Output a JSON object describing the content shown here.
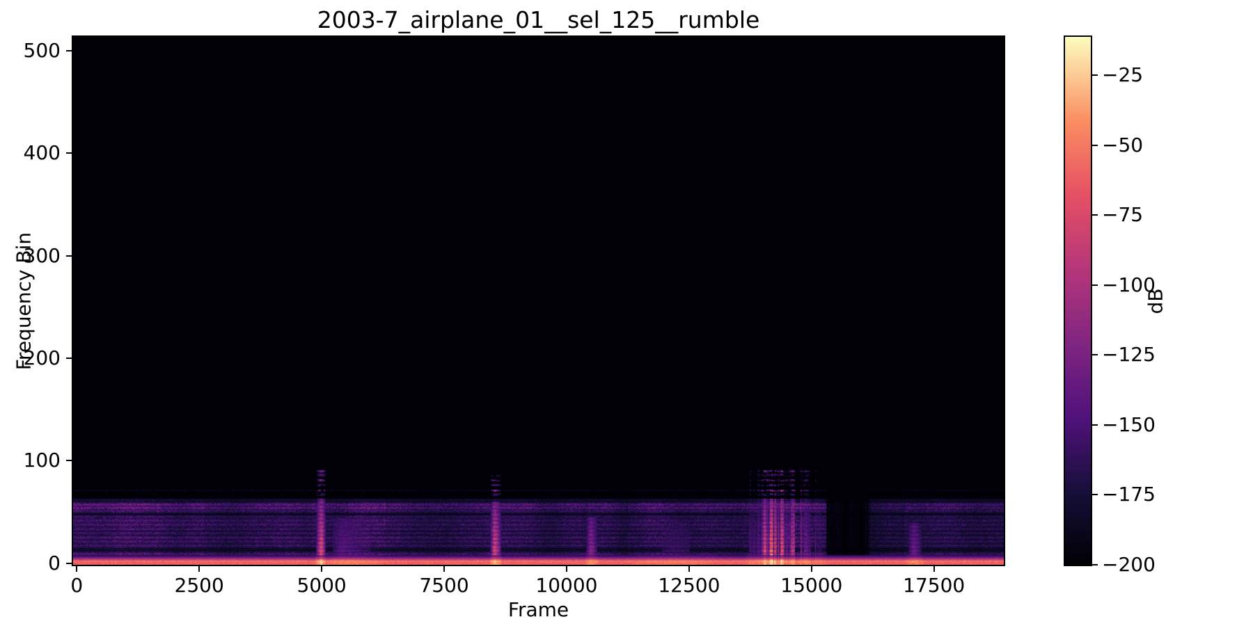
{
  "figure": {
    "background": "#ffffff",
    "text_color": "#000000"
  },
  "chart_data": {
    "type": "heatmap",
    "subtype": "spectrogram",
    "title": "2003-7_airplane_01__sel_125__rumble",
    "xlabel": "Frame",
    "ylabel": "Frequency Bin",
    "colormap": "magma",
    "grid": false,
    "x_axis": {
      "min": -75,
      "max": 18925,
      "ticks": [
        0,
        2500,
        5000,
        7500,
        10000,
        12500,
        15000,
        17500
      ]
    },
    "y_axis": {
      "min": -1.5,
      "max": 513.5,
      "ticks": [
        0,
        100,
        200,
        300,
        400,
        500
      ]
    },
    "colorbar": {
      "label": "dB",
      "vmin": -200,
      "vmax": -11.3,
      "ticks": [
        -25,
        -50,
        -75,
        -100,
        -125,
        -150,
        -175,
        -200
      ]
    },
    "colormap_stops": [
      [
        0.0,
        "#000004"
      ],
      [
        0.13,
        "#140e36"
      ],
      [
        0.28,
        "#50127b"
      ],
      [
        0.42,
        "#812581"
      ],
      [
        0.56,
        "#b5367a"
      ],
      [
        0.7,
        "#e55064"
      ],
      [
        0.84,
        "#fb8d61"
      ],
      [
        1.0,
        "#fcfdbf"
      ]
    ],
    "background_db": -200,
    "bottom_band": {
      "bins": [
        0,
        7
      ],
      "profile": [
        0.74,
        0.8,
        0.72,
        0.6,
        0.47,
        0.36,
        0.26,
        0.17
      ],
      "description": "bright orange baseline band at lowest frequency bins, spans all frames"
    },
    "noise_band": {
      "bin_range": [
        8,
        63
      ],
      "base_level": 0.1,
      "stripe_amp": 0.15,
      "description": "purple horizontally-striated broadband rumble, spans all frames"
    },
    "faint_line_bin": 71,
    "dash_rows": [
      [
        67,
        0.3
      ],
      [
        71,
        0.6
      ],
      [
        76,
        0.38
      ],
      [
        81,
        0.55
      ],
      [
        86,
        0.35
      ],
      [
        90,
        0.5
      ]
    ],
    "activity_profile": [
      [
        2600,
        1.0
      ],
      [
        4800,
        0.85
      ],
      [
        6300,
        0.95
      ],
      [
        8400,
        0.85
      ],
      [
        10300,
        0.9
      ],
      [
        11250,
        0.8
      ],
      [
        13600,
        0.95
      ],
      [
        15300,
        1.0
      ],
      [
        16200,
        0.35
      ],
      [
        16900,
        0.6
      ],
      [
        18925,
        0.75
      ]
    ],
    "events": [
      {
        "start": 4870,
        "peak": 4990,
        "end": 5090,
        "strength": 0.95,
        "top_bin": 91
      },
      {
        "start": 5090,
        "peak": 5400,
        "end": 6280,
        "strength": 0.42,
        "top_bin": 63
      },
      {
        "start": 8430,
        "peak": 8530,
        "end": 8680,
        "strength": 0.88,
        "top_bin": 85
      },
      {
        "start": 10380,
        "peak": 10490,
        "end": 10650,
        "strength": 0.62,
        "top_bin": 64
      },
      {
        "start": 11250,
        "peak": 12200,
        "end": 13150,
        "strength": 0.3,
        "top_bin": 58
      },
      {
        "start": 13640,
        "peak": 14180,
        "end": 15300,
        "strength": 1.0,
        "top_bin": 92,
        "flicker": true,
        "gaps": [
          [
            14660,
            14770
          ],
          [
            14990,
            15070
          ]
        ]
      },
      {
        "start": 16920,
        "peak": 17090,
        "end": 17290,
        "strength": 0.5,
        "top_bin": 56
      }
    ],
    "quiet_zones": [
      {
        "start": 15310,
        "end": 16160,
        "factor": 0.5
      }
    ]
  }
}
